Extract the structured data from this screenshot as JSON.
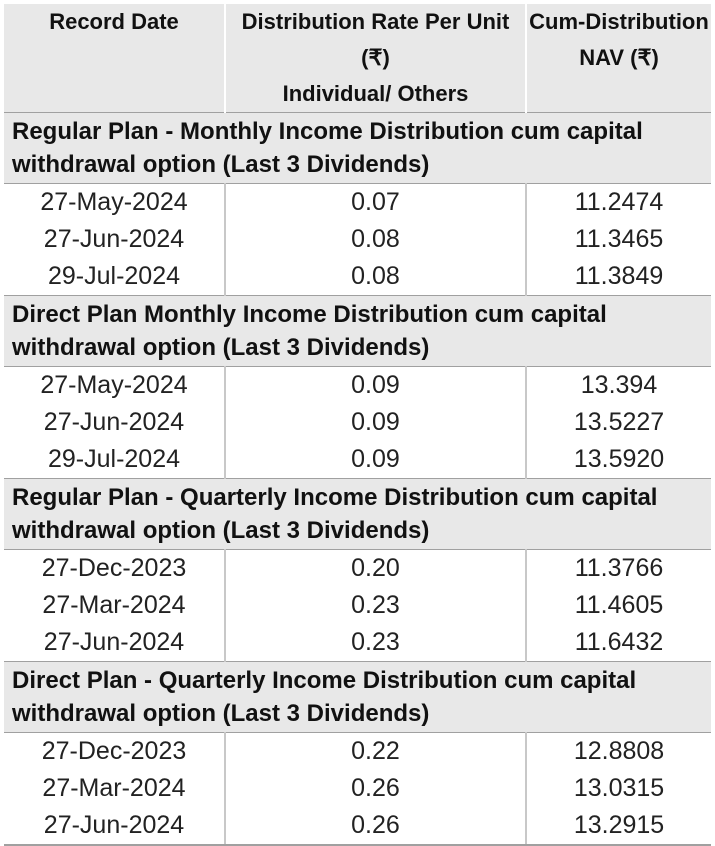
{
  "headers": {
    "record_date": "Record Date",
    "rate_line1": "Distribution Rate Per Unit (₹)",
    "rate_line2": "Individual/ Others",
    "nav_line1": "Cum-Distribution",
    "nav_line2": "NAV (₹)"
  },
  "sections": [
    {
      "title": "Regular Plan - Monthly Income Distribution cum capital withdrawal option (Last 3 Dividends)",
      "rows": [
        {
          "date": "27-May-2024",
          "rate": "0.07",
          "nav": "11.2474"
        },
        {
          "date": "27-Jun-2024",
          "rate": "0.08",
          "nav": "11.3465"
        },
        {
          "date": "29-Jul-2024",
          "rate": "0.08",
          "nav": "11.3849"
        }
      ]
    },
    {
      "title": "Direct Plan Monthly Income Distribution cum capital withdrawal option (Last 3 Dividends)",
      "rows": [
        {
          "date": "27-May-2024",
          "rate": "0.09",
          "nav": "13.394"
        },
        {
          "date": "27-Jun-2024",
          "rate": "0.09",
          "nav": "13.5227"
        },
        {
          "date": "29-Jul-2024",
          "rate": "0.09",
          "nav": "13.5920"
        }
      ]
    },
    {
      "title": "Regular Plan - Quarterly Income Distribution cum capital withdrawal option (Last 3 Dividends)",
      "rows": [
        {
          "date": "27-Dec-2023",
          "rate": "0.20",
          "nav": "11.3766"
        },
        {
          "date": "27-Mar-2024",
          "rate": "0.23",
          "nav": "11.4605"
        },
        {
          "date": "27-Jun-2024",
          "rate": "0.23",
          "nav": "11.6432"
        }
      ]
    },
    {
      "title": "Direct Plan - Quarterly Income Distribution cum capital withdrawal option (Last 3 Dividends)",
      "rows": [
        {
          "date": "27-Dec-2023",
          "rate": "0.22",
          "nav": "12.8808"
        },
        {
          "date": "27-Mar-2024",
          "rate": "0.26",
          "nav": "13.0315"
        },
        {
          "date": "27-Jun-2024",
          "rate": "0.26",
          "nav": "13.2915"
        }
      ]
    }
  ]
}
